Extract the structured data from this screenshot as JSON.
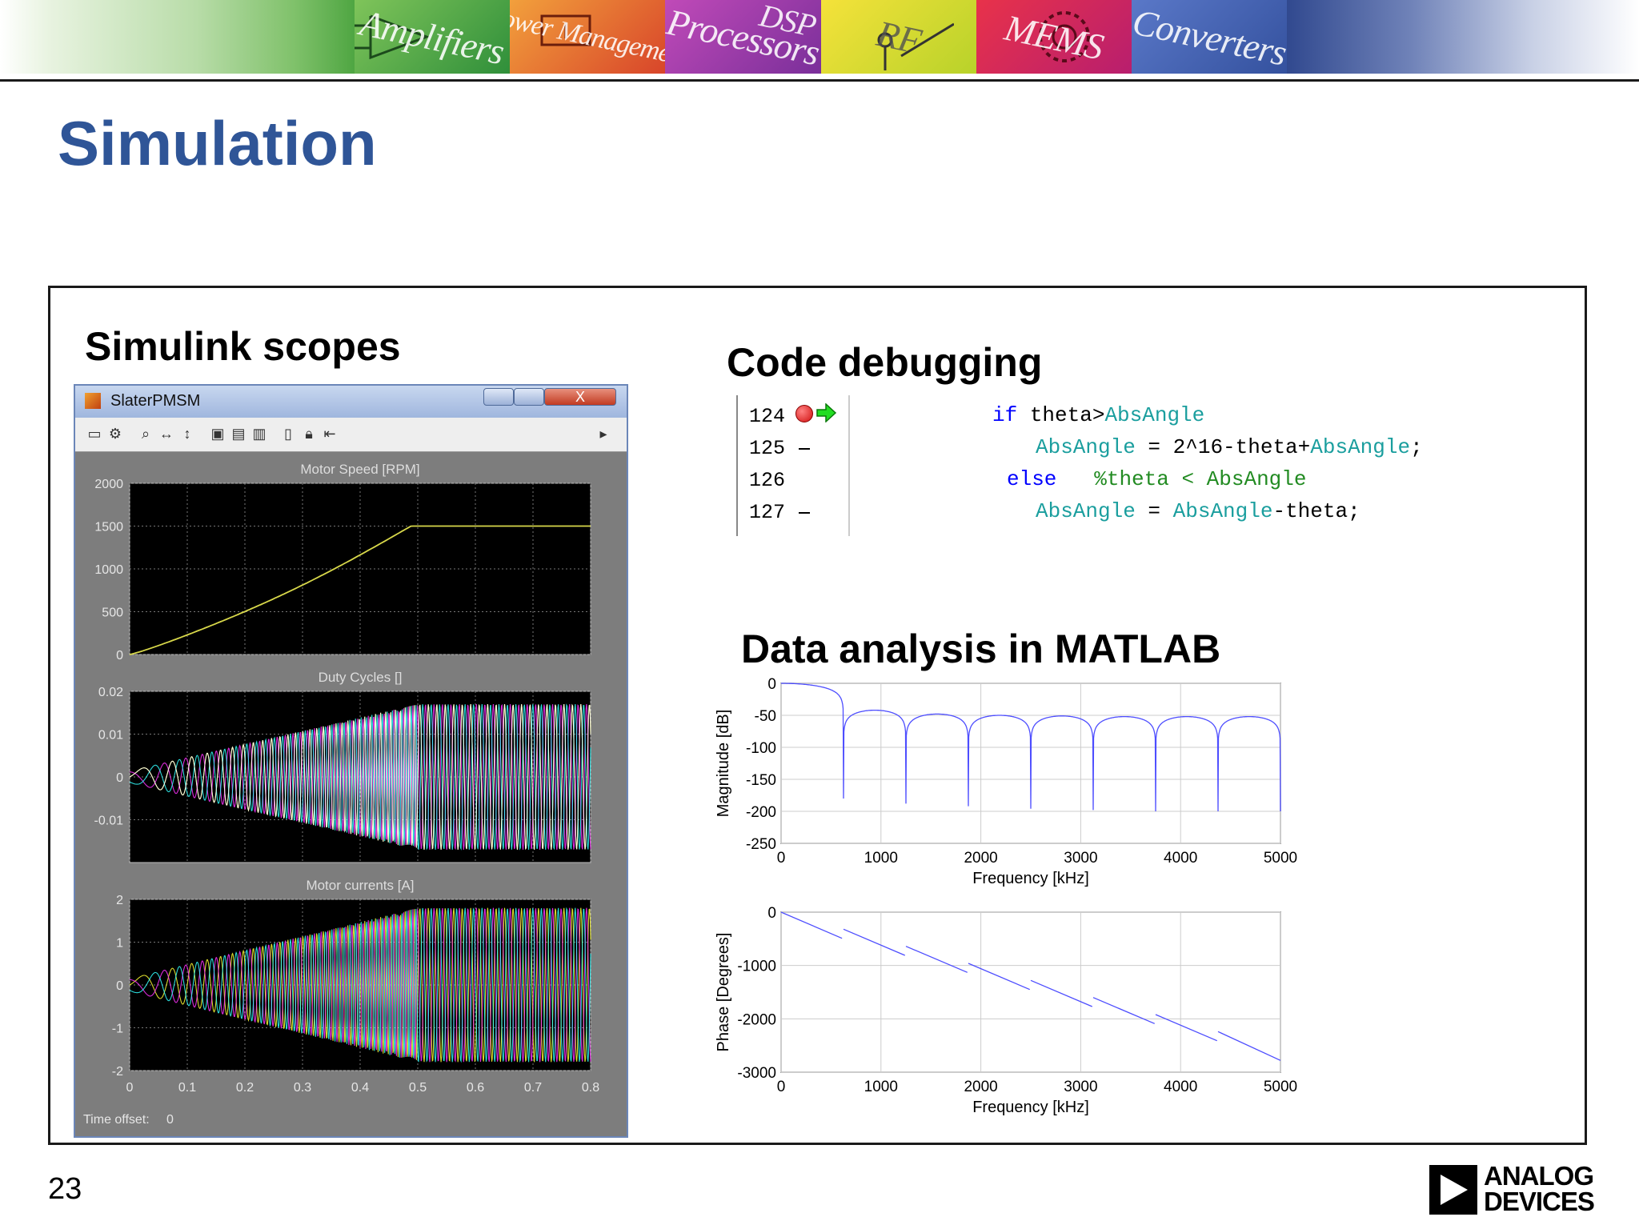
{
  "banner": {
    "categories": [
      "Amplifiers",
      "Power Management",
      "Processors",
      "DSP",
      "RF",
      "MEMS",
      "Converters"
    ]
  },
  "page": {
    "title": "Simulation",
    "slide_number": "23",
    "logo_line1": "ANALOG",
    "logo_line2": "DEVICES"
  },
  "sections": {
    "scopes": "Simulink scopes",
    "code": "Code debugging",
    "analysis": "Data analysis in MATLAB"
  },
  "scope_window": {
    "title": "SlaterPMSM",
    "close_glyph": "X",
    "time_offset_label": "Time offset:",
    "time_offset_value": "0",
    "x_ticks": [
      "0",
      "0.1",
      "0.2",
      "0.3",
      "0.4",
      "0.5",
      "0.6",
      "0.7",
      "0.8"
    ],
    "panels": [
      {
        "title": "Motor Speed [RPM]",
        "y_ticks": [
          "2000",
          "1500",
          "1000",
          "500",
          "0"
        ],
        "ylim": [
          0,
          2000
        ]
      },
      {
        "title": "Duty Cycles []",
        "y_ticks": [
          "0.02",
          "0.01",
          "0",
          "-0.01"
        ],
        "ylim": [
          -0.02,
          0.02
        ]
      },
      {
        "title": "Motor currents [A]",
        "y_ticks": [
          "2",
          "1",
          "0",
          "-1",
          "-2"
        ],
        "ylim": [
          -2,
          2
        ]
      }
    ],
    "colors": {
      "plot_bg": "#000000",
      "speed_trace": "#d8d84a",
      "window_bg": "#7d7d7d"
    }
  },
  "code": {
    "line_numbers": [
      "124",
      "125",
      "126",
      "127"
    ],
    "line124": {
      "kw": "if",
      "text": " theta>",
      "var": "AbsAngle"
    },
    "line125": {
      "var1": "AbsAngle",
      "text": " = 2^16-theta+",
      "var2": "AbsAngle",
      "end": ";"
    },
    "line126": {
      "kw": "else",
      "comment": "%theta < AbsAngle"
    },
    "line127": {
      "var1": "AbsAngle",
      "text1": " = ",
      "var2": "AbsAngle",
      "text2": "-theta;"
    }
  },
  "chart_data": [
    {
      "type": "line",
      "title": "",
      "xlabel": "Frequency [kHz]",
      "ylabel": "Magnitude [dB]",
      "xlim": [
        0,
        5000
      ],
      "ylim": [
        -250,
        0
      ],
      "x_ticks": [
        "0",
        "1000",
        "2000",
        "3000",
        "4000",
        "5000"
      ],
      "y_ticks": [
        "0",
        "-50",
        "-100",
        "-150",
        "-200",
        "-250"
      ],
      "notch_frequencies": [
        625,
        1250,
        1875,
        2500,
        3125,
        3750,
        4375,
        5000
      ],
      "lobe_peaks_db": [
        0,
        -42,
        -48,
        -50,
        -51,
        -52,
        -52,
        -52
      ],
      "notch_depth_db": [
        -160,
        -180,
        -188,
        -192,
        -196,
        -198,
        -200,
        -200
      ],
      "color": "#4d4dff"
    },
    {
      "type": "line",
      "title": "",
      "xlabel": "Frequency [kHz]",
      "ylabel": "Phase [Degrees]",
      "xlim": [
        0,
        5000
      ],
      "ylim": [
        -3000,
        0
      ],
      "x_ticks": [
        "0",
        "1000",
        "2000",
        "3000",
        "4000",
        "5000"
      ],
      "y_ticks": [
        "0",
        "-1000",
        "-2000",
        "-3000"
      ],
      "segments": [
        {
          "x": [
            0,
            610
          ],
          "y": [
            0,
            -490
          ]
        },
        {
          "x": [
            625,
            1240
          ],
          "y": [
            -320,
            -810
          ]
        },
        {
          "x": [
            1250,
            1865
          ],
          "y": [
            -640,
            -1130
          ]
        },
        {
          "x": [
            1875,
            2490
          ],
          "y": [
            -960,
            -1450
          ]
        },
        {
          "x": [
            2500,
            3115
          ],
          "y": [
            -1280,
            -1770
          ]
        },
        {
          "x": [
            3125,
            3740
          ],
          "y": [
            -1600,
            -2090
          ]
        },
        {
          "x": [
            3750,
            4365
          ],
          "y": [
            -1920,
            -2410
          ]
        },
        {
          "x": [
            4375,
            5000
          ],
          "y": [
            -2240,
            -2780
          ]
        }
      ],
      "color": "#4d4dff"
    }
  ]
}
